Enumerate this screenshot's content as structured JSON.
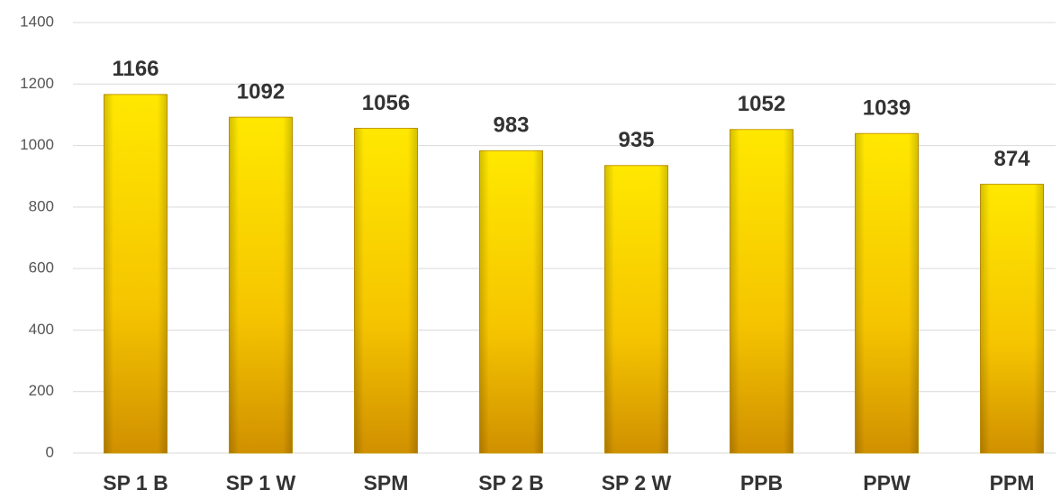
{
  "chart_data": {
    "type": "bar",
    "categories": [
      "SP 1 B",
      "SP 1 W",
      "SPM",
      "SP 2 B",
      "SP 2 W",
      "PPB",
      "PPW",
      "PPM"
    ],
    "values": [
      1166,
      1092,
      1056,
      983,
      935,
      1052,
      1039,
      874
    ],
    "color": "#f5c400",
    "ylim": [
      0,
      1400
    ],
    "yticks": [
      0,
      200,
      400,
      600,
      800,
      1000,
      1200,
      1400
    ],
    "grid": true
  }
}
